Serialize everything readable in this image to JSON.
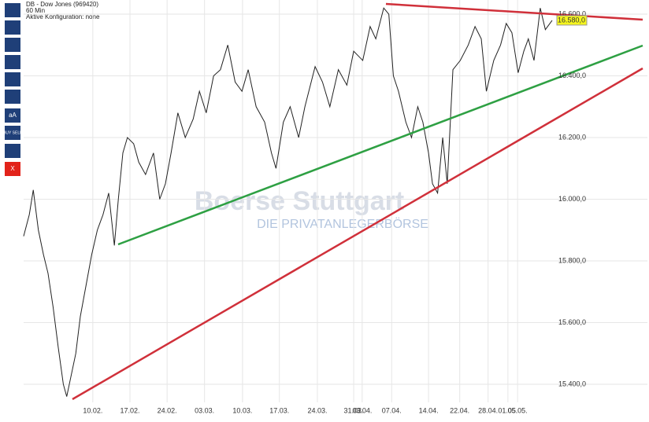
{
  "chart_data": {
    "type": "line",
    "header": [
      "DB - Dow Jones (969420)",
      "60 Min",
      "Aktive Konfiguration: none"
    ],
    "watermark": [
      "Boerse Stuttgart",
      "DIE PRIVATANLEGERBÖRSE"
    ],
    "toolbar": [
      "aA",
      "BUY SELL",
      "X"
    ],
    "xlim": [
      0,
      110
    ],
    "xticks": [
      {
        "value": 12.2,
        "label": "10.02."
      },
      {
        "value": 18.75,
        "label": "17.02."
      },
      {
        "value": 25.3,
        "label": "24.02."
      },
      {
        "value": 31.9,
        "label": "03.03."
      },
      {
        "value": 38.6,
        "label": "10.03."
      },
      {
        "value": 45.1,
        "label": "17.03."
      },
      {
        "value": 51.8,
        "label": "24.03."
      },
      {
        "value": 58.2,
        "label": "31.03."
      },
      {
        "value": 59.7,
        "label": "03.04."
      },
      {
        "value": 64.9,
        "label": "07.04."
      },
      {
        "value": 71.4,
        "label": "14.04."
      },
      {
        "value": 76.9,
        "label": "22.04."
      },
      {
        "value": 81.9,
        "label": "28.04."
      },
      {
        "value": 85.4,
        "label": "01.05."
      },
      {
        "value": 87.1,
        "label": "05.05."
      }
    ],
    "ylim": [
      15354,
      16646
    ],
    "yticks": [
      {
        "value": 15400,
        "label": "15.400,0"
      },
      {
        "value": 15600,
        "label": "15.600,0"
      },
      {
        "value": 15800,
        "label": "15.800,0"
      },
      {
        "value": 16000,
        "label": "16.000,0"
      },
      {
        "value": 16200,
        "label": "16.200,0"
      },
      {
        "value": 16400,
        "label": "16.400,0"
      },
      {
        "value": 16600,
        "label": "16.600,0"
      }
    ],
    "last_price": {
      "value": 16580,
      "label": "16.580,0"
    },
    "series": [
      {
        "name": "DB - Dow Jones (969420)",
        "color": "#222222",
        "x": [
          0,
          1,
          1.7,
          2.6,
          3.5,
          4.3,
          5.2,
          6.1,
          7.0,
          7.6,
          8.4,
          9.2,
          10.0,
          11.0,
          12.0,
          13.0,
          14.0,
          15.0,
          16.0,
          16.7,
          17.5,
          18.3,
          19.4,
          20.3,
          21.5,
          22.9,
          24.0,
          25.0,
          26.0,
          27.2,
          28.5,
          29.9,
          31.0,
          32.2,
          33.5,
          34.7,
          36.0,
          37.3,
          38.5,
          39.6,
          41.0,
          42.5,
          43.7,
          44.5,
          45.8,
          47.0,
          48.5,
          49.6,
          51.4,
          52.7,
          54.0,
          55.5,
          57.0,
          58.2,
          59.8,
          61.1,
          62.1,
          63.5,
          64.4,
          65.2,
          66.1,
          67.4,
          68.4,
          69.5,
          70.4,
          71.4,
          72.1,
          73.0,
          73.9,
          74.7,
          75.7,
          77.0,
          78.4,
          79.6,
          80.7,
          81.6,
          82.9,
          84.1,
          85.1,
          86.1,
          87.2,
          88.2,
          89.0,
          90.0,
          91.1,
          92.0,
          93.2
        ],
        "values": [
          15880,
          15950,
          16030,
          15900,
          15820,
          15760,
          15650,
          15520,
          15400,
          15360,
          15430,
          15500,
          15620,
          15720,
          15820,
          15900,
          15950,
          16020,
          15850,
          16000,
          16150,
          16200,
          16180,
          16120,
          16080,
          16150,
          16000,
          16050,
          16150,
          16280,
          16200,
          16260,
          16350,
          16280,
          16400,
          16420,
          16500,
          16380,
          16350,
          16420,
          16300,
          16250,
          16150,
          16100,
          16250,
          16300,
          16200,
          16300,
          16430,
          16380,
          16300,
          16420,
          16370,
          16480,
          16450,
          16560,
          16520,
          16620,
          16600,
          16400,
          16350,
          16250,
          16200,
          16300,
          16250,
          16150,
          16050,
          16020,
          16200,
          16050,
          16420,
          16450,
          16500,
          16560,
          16520,
          16350,
          16450,
          16500,
          16570,
          16540,
          16410,
          16480,
          16520,
          16450,
          16620,
          16550,
          16580
        ]
      }
    ]
  }
}
